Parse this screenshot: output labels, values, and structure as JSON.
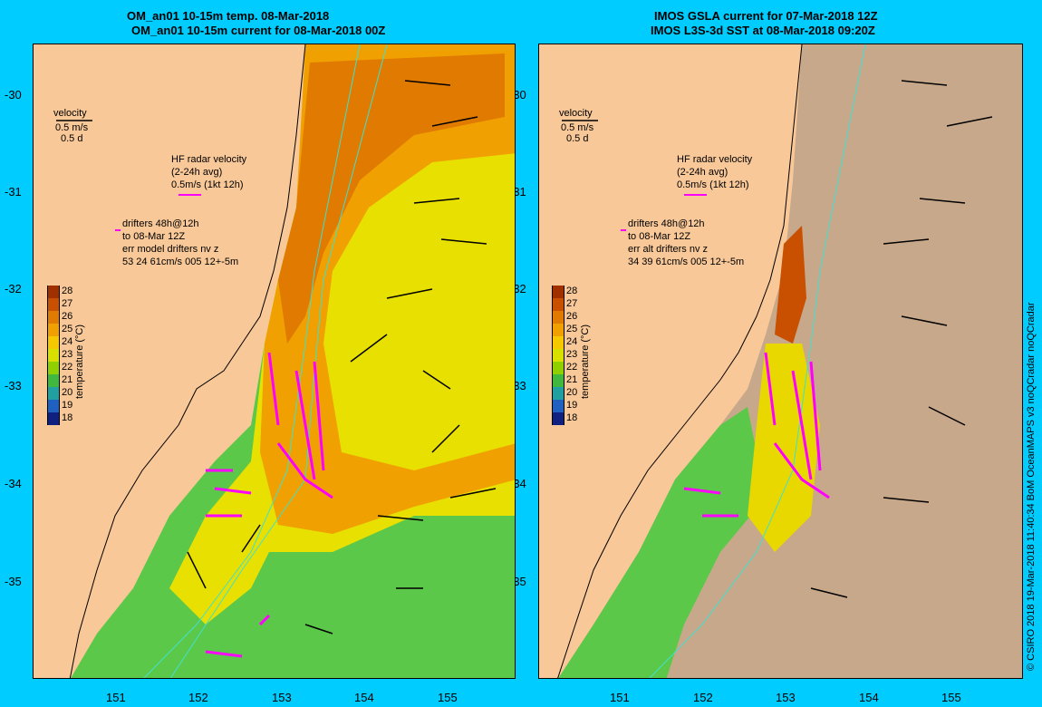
{
  "left_panel": {
    "title_line1": "OM_an01 10-15m temp. 08-Mar-2018",
    "title_line2": "OM_an01 10-15m current for 08-Mar-2018 00Z",
    "velocity_label": "velocity",
    "velocity_scale": "0.5 m/s",
    "velocity_days": "0.5 d",
    "hf_title": "HF radar velocity",
    "hf_avg": "(2-24h avg)",
    "hf_scale": "0.5m/s (1kt 12h)",
    "drifters_1": "drifters 48h@12h",
    "drifters_2": "to 08-Mar 12Z",
    "drifters_3": "err model drifters nv z",
    "drifters_4": "53 24 61cm/s 005 12+-5m"
  },
  "right_panel": {
    "title_line1": "IMOS GSLA current for 07-Mar-2018 12Z",
    "title_line2": "IMOS L3S-3d SST at 08-Mar-2018 09:20Z",
    "velocity_label": "velocity",
    "velocity_scale": "0.5 m/s",
    "velocity_days": "0.5 d",
    "hf_title": "HF radar velocity",
    "hf_avg": "(2-24h avg)",
    "hf_scale": "0.5m/s (1kt 12h)",
    "drifters_1": "drifters 48h@12h",
    "drifters_2": "to 08-Mar 12Z",
    "drifters_3": "err alt drifters nv z",
    "drifters_4": "34 39 61cm/s 005 12+-5m"
  },
  "latitude_labels": [
    "-30",
    "-31",
    "-32",
    "-33",
    "-34",
    "-35"
  ],
  "longitude_labels": [
    "151",
    "152",
    "153",
    "154",
    "155"
  ],
  "colorbar": {
    "title": "temperature (°C)",
    "values": [
      "28",
      "27",
      "26",
      "25",
      "24",
      "23",
      "22",
      "21",
      "20",
      "19",
      "18"
    ],
    "colors": [
      "#a03000",
      "#c85000",
      "#e07a00",
      "#f0a000",
      "#f5c800",
      "#d8e000",
      "#90d000",
      "#40b840",
      "#20a0a0",
      "#2060c0",
      "#102080"
    ]
  },
  "credit": "© CSIRO 2018  19-Mar-2018 11:40:34 BoM OceanMAPS v3 noQCradar noQCradar",
  "colors": {
    "background": "#00ccff",
    "land": "#f8c898",
    "drifter": "#ff00ff",
    "contour": "#40e0d0",
    "nodata": "#c8a88a"
  }
}
